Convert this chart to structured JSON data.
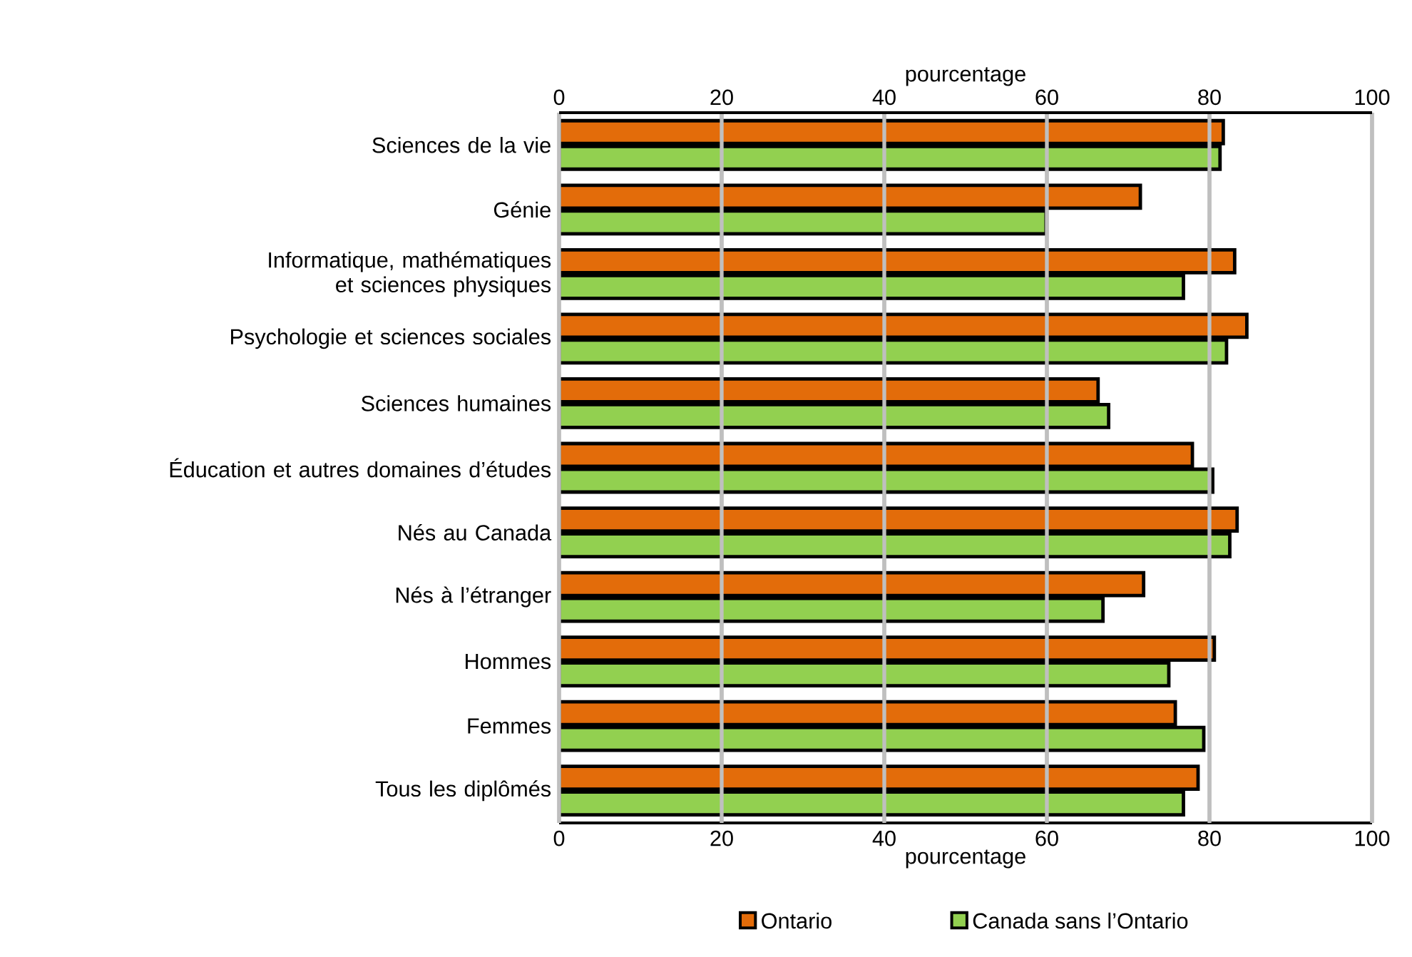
{
  "chart_data": {
    "type": "bar",
    "orientation": "horizontal",
    "categories": [
      "Sciences de la vie",
      "Génie",
      "Informatique, mathématiques et sciences physiques",
      "Psychologie et sciences sociales",
      "Sciences humaines",
      "Éducation et autres domaines d’études",
      "Nés au Canada",
      "Nés à l’étranger",
      "Hommes",
      "Femmes",
      "Tous les diplômés"
    ],
    "series": [
      {
        "name": "Ontario",
        "color": "#e36c0a",
        "values": [
          81.7,
          71.5,
          83.1,
          84.6,
          66.3,
          77.9,
          83.4,
          71.9,
          80.6,
          75.8,
          78.6
        ]
      },
      {
        "name": "Canada sans l’Ontario",
        "color": "#92d050",
        "values": [
          81.3,
          59.9,
          76.8,
          82.1,
          67.6,
          80.4,
          82.5,
          66.9,
          75.0,
          79.3,
          76.8
        ]
      }
    ],
    "xlabel": "pourcentage",
    "x2label": "pourcentage",
    "xlim": [
      0,
      100
    ],
    "xticks": [
      0,
      20,
      40,
      60,
      80,
      100
    ],
    "x2lim": [
      0,
      100
    ],
    "x2ticks": [
      0,
      20,
      40,
      60,
      80,
      100
    ],
    "grid": "x",
    "legend": "bottom"
  }
}
